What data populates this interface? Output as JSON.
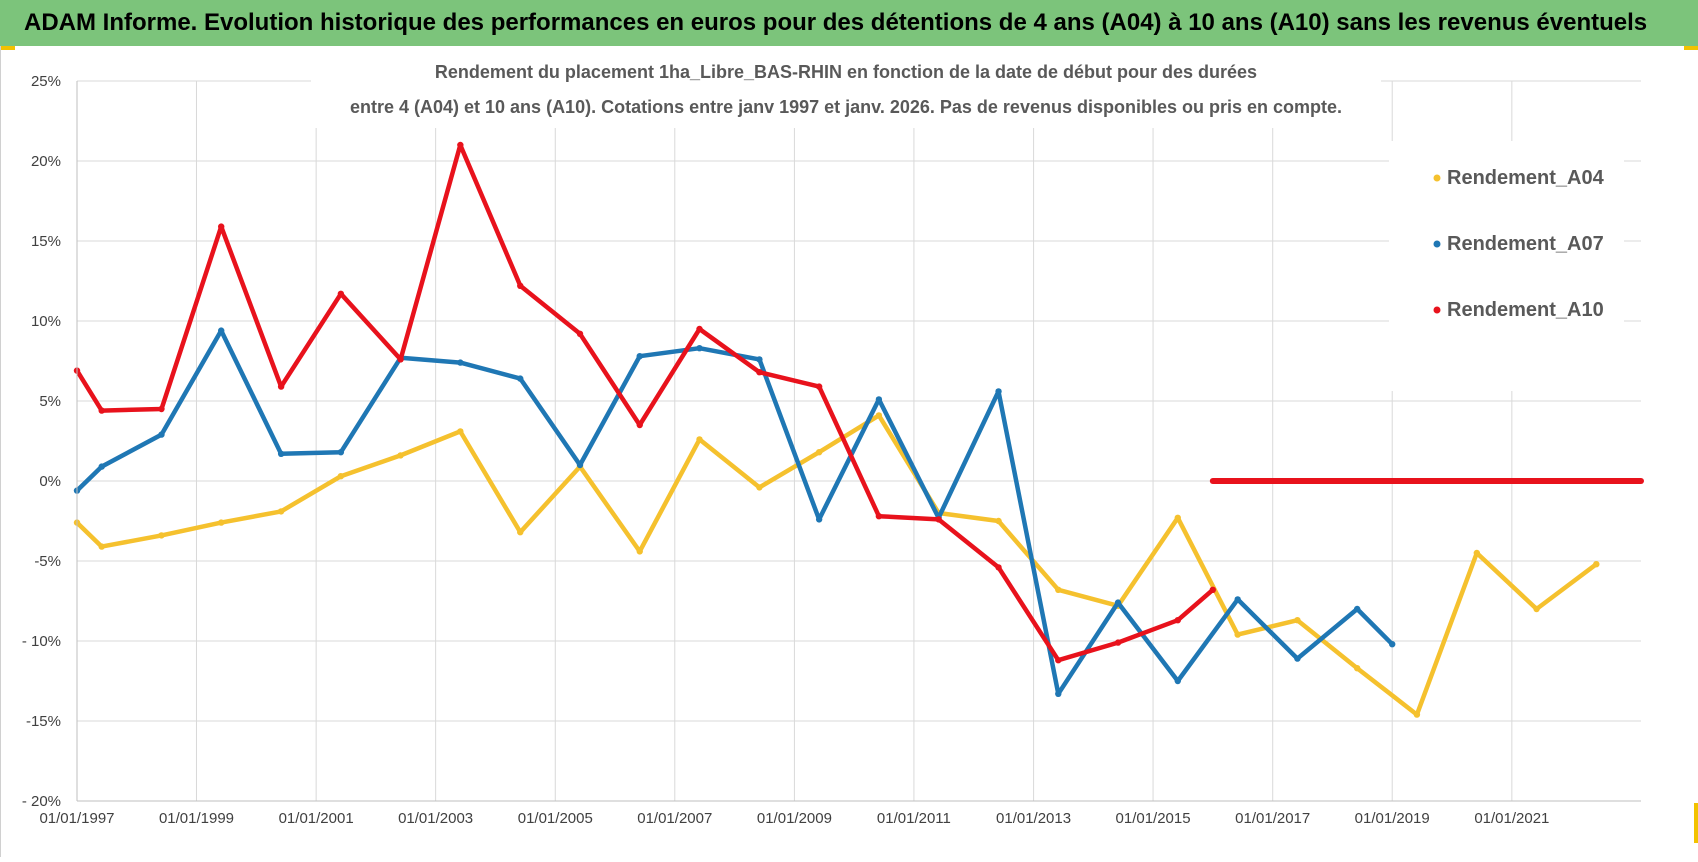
{
  "banner": {
    "title": "ADAM Informe. Evolution historique des performances en euros pour des détentions de 4 ans (A04) à 10 ans (A10) sans les revenus éventuels"
  },
  "colors": {
    "banner_bg": "#7cc47b",
    "Rendement_A04": "#f5c12e",
    "Rendement_A07": "#1f77b4",
    "Rendement_A10": "#e8121c",
    "grid": "#d9d9d9"
  },
  "chart_data": {
    "type": "line",
    "title_lines": [
      "Rendement du placement 1ha_Libre_BAS-RHIN en fonction de la date de début pour des durées",
      "entre 4 (A04) et 10 ans (A10).  Cotations entre janv 1997 et janv. 2026. Pas de revenus disponibles ou pris en compte."
    ],
    "xlabel": "",
    "ylabel": "",
    "x_ticks": [
      "01/01/1997",
      "01/01/1999",
      "01/01/2001",
      "01/01/2003",
      "01/01/2005",
      "01/01/2007",
      "01/01/2009",
      "01/01/2011",
      "01/01/2013",
      "01/01/2015",
      "01/01/2017",
      "01/01/2019",
      "01/01/2021"
    ],
    "x_range": [
      "1997-01-01",
      "2023-03-01"
    ],
    "y_ticks": [
      "25%",
      "20%",
      "15%",
      "10%",
      "5%",
      "0%",
      "-5%",
      "- 10%",
      "-15%",
      "- 20%"
    ],
    "y_tick_values": [
      25,
      20,
      15,
      10,
      5,
      0,
      -5,
      -10,
      -15,
      -20
    ],
    "ylim": [
      -20,
      25
    ],
    "grid": true,
    "legend_position": "top-right",
    "series": [
      {
        "name": "Rendement_A04",
        "points": [
          [
            "1997-01-01",
            -2.6
          ],
          [
            "1997-06-01",
            -4.1
          ],
          [
            "1998-06-01",
            -3.4
          ],
          [
            "1999-06-01",
            -2.6
          ],
          [
            "2000-06-01",
            -1.9
          ],
          [
            "2001-06-01",
            0.3
          ],
          [
            "2002-06-01",
            1.6
          ],
          [
            "2003-06-01",
            3.1
          ],
          [
            "2004-06-01",
            -3.2
          ],
          [
            "2005-06-01",
            0.9
          ],
          [
            "2006-06-01",
            -4.4
          ],
          [
            "2007-06-01",
            2.6
          ],
          [
            "2008-06-01",
            -0.4
          ],
          [
            "2009-06-01",
            1.8
          ],
          [
            "2010-06-01",
            4.1
          ],
          [
            "2011-06-01",
            -2.0
          ],
          [
            "2012-06-01",
            -2.5
          ],
          [
            "2013-06-01",
            -6.8
          ],
          [
            "2014-06-01",
            -7.8
          ],
          [
            "2015-06-01",
            -2.3
          ],
          [
            "2016-06-01",
            -9.6
          ],
          [
            "2017-06-01",
            -8.7
          ],
          [
            "2018-06-01",
            -11.7
          ],
          [
            "2019-06-01",
            -14.6
          ],
          [
            "2020-06-01",
            -4.5
          ],
          [
            "2021-06-01",
            -8.0
          ],
          [
            "2022-06-01",
            -5.2
          ]
        ]
      },
      {
        "name": "Rendement_A07",
        "points": [
          [
            "1997-01-01",
            -0.6
          ],
          [
            "1997-06-01",
            0.9
          ],
          [
            "1998-06-01",
            2.9
          ],
          [
            "1999-06-01",
            9.4
          ],
          [
            "2000-06-01",
            1.7
          ],
          [
            "2001-06-01",
            1.8
          ],
          [
            "2002-06-01",
            7.7
          ],
          [
            "2003-06-01",
            7.4
          ],
          [
            "2004-06-01",
            6.4
          ],
          [
            "2005-06-01",
            1.0
          ],
          [
            "2006-06-01",
            7.8
          ],
          [
            "2007-06-01",
            8.3
          ],
          [
            "2008-06-01",
            7.6
          ],
          [
            "2009-06-01",
            -2.4
          ],
          [
            "2010-06-01",
            5.1
          ],
          [
            "2011-06-01",
            -2.3
          ],
          [
            "2012-06-01",
            5.6
          ],
          [
            "2013-06-01",
            -13.3
          ],
          [
            "2014-06-01",
            -7.6
          ],
          [
            "2015-06-01",
            -12.5
          ],
          [
            "2016-06-01",
            -7.4
          ],
          [
            "2017-06-01",
            -11.1
          ],
          [
            "2018-06-01",
            -8.0
          ],
          [
            "2019-01-01",
            -10.2
          ]
        ]
      },
      {
        "name": "Rendement_A10",
        "points": [
          [
            "1997-01-01",
            6.9
          ],
          [
            "1997-06-01",
            4.4
          ],
          [
            "1998-06-01",
            4.5
          ],
          [
            "1999-06-01",
            15.9
          ],
          [
            "2000-06-01",
            5.9
          ],
          [
            "2001-06-01",
            11.7
          ],
          [
            "2002-06-01",
            7.6
          ],
          [
            "2003-06-01",
            21.0
          ],
          [
            "2004-06-01",
            12.2
          ],
          [
            "2005-06-01",
            9.2
          ],
          [
            "2006-06-01",
            3.5
          ],
          [
            "2007-06-01",
            9.5
          ],
          [
            "2008-06-01",
            6.8
          ],
          [
            "2009-06-01",
            5.9
          ],
          [
            "2010-06-01",
            -2.2
          ],
          [
            "2011-06-01",
            -2.4
          ],
          [
            "2012-06-01",
            -5.4
          ],
          [
            "2013-06-01",
            -11.2
          ],
          [
            "2014-06-01",
            -10.1
          ],
          [
            "2015-06-01",
            -8.7
          ],
          [
            "2016-01-01",
            -6.8
          ]
        ],
        "flat_segment": {
          "from": "2016-01-01",
          "to": "2023-03-01",
          "value": 0.0
        }
      }
    ]
  }
}
